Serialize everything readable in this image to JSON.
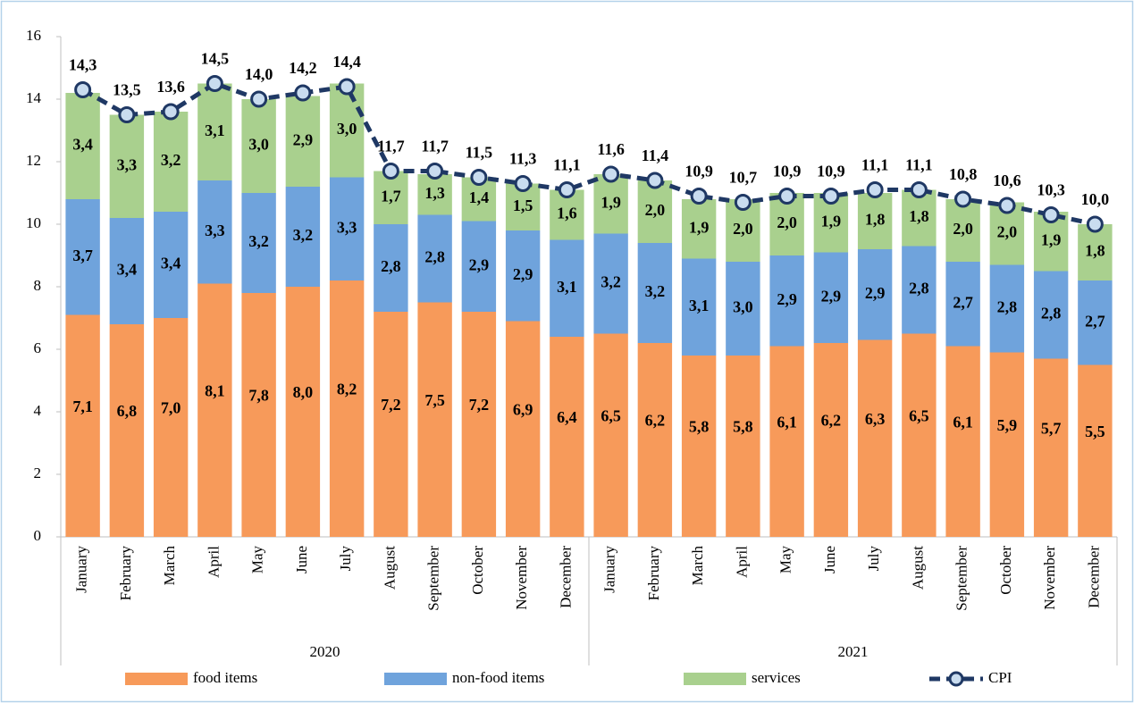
{
  "chart_data": {
    "type": "bar",
    "stacked": true,
    "categories": [
      "January",
      "February",
      "March",
      "April",
      "May",
      "June",
      "July",
      "August",
      "September",
      "October",
      "November",
      "December",
      "January",
      "February",
      "March",
      "April",
      "May",
      "June",
      "July",
      "August",
      "September",
      "October",
      "November",
      "December"
    ],
    "groups": [
      "2020",
      "2021"
    ],
    "ylim": [
      0,
      16
    ],
    "yticks": [
      0,
      2,
      4,
      6,
      8,
      10,
      12,
      14,
      16
    ],
    "grid": false,
    "legend": "bottom",
    "series": [
      {
        "name": "food items",
        "type": "bar",
        "color": "#f79a5a",
        "values": [
          7.1,
          6.8,
          7.0,
          8.1,
          7.8,
          8.0,
          8.2,
          7.2,
          7.5,
          7.2,
          6.9,
          6.4,
          6.5,
          6.2,
          5.8,
          5.8,
          6.1,
          6.2,
          6.3,
          6.5,
          6.1,
          5.9,
          5.7,
          5.5
        ],
        "value_labels": [
          "7,1",
          "6,8",
          "7,0",
          "8,1",
          "7,8",
          "8,0",
          "8,2",
          "7,2",
          "7,5",
          "7,2",
          "6,9",
          "6,4",
          "6,5",
          "6,2",
          "5,8",
          "5,8",
          "6,1",
          "6,2",
          "6,3",
          "6,5",
          "6,1",
          "5,9",
          "5,7",
          "5,5"
        ]
      },
      {
        "name": "non-food items",
        "type": "bar",
        "color": "#6fa3dc",
        "values": [
          3.7,
          3.4,
          3.4,
          3.3,
          3.2,
          3.2,
          3.3,
          2.8,
          2.8,
          2.9,
          2.9,
          3.1,
          3.2,
          3.2,
          3.1,
          3.0,
          2.9,
          2.9,
          2.9,
          2.8,
          2.7,
          2.8,
          2.8,
          2.7
        ],
        "value_labels": [
          "3,7",
          "3,4",
          "3,4",
          "3,3",
          "3,2",
          "3,2",
          "3,3",
          "2,8",
          "2,8",
          "2,9",
          "2,9",
          "3,1",
          "3,2",
          "3,2",
          "3,1",
          "3,0",
          "2,9",
          "2,9",
          "2,9",
          "2,8",
          "2,7",
          "2,8",
          "2,8",
          "2,7"
        ]
      },
      {
        "name": "services",
        "type": "bar",
        "color": "#a9d08e",
        "values": [
          3.4,
          3.3,
          3.2,
          3.1,
          3.0,
          2.9,
          3.0,
          1.7,
          1.3,
          1.4,
          1.5,
          1.6,
          1.9,
          2.0,
          1.9,
          2.0,
          2.0,
          1.9,
          1.8,
          1.8,
          2.0,
          2.0,
          1.9,
          1.8
        ],
        "value_labels": [
          "3,4",
          "3,3",
          "3,2",
          "3,1",
          "3,0",
          "2,9",
          "3,0",
          "1,7",
          "1,3",
          "1,4",
          "1,5",
          "1,6",
          "1,9",
          "2,0",
          "1,9",
          "2,0",
          "2,0",
          "1,9",
          "1,8",
          "1,8",
          "2,0",
          "2,0",
          "1,9",
          "1,8"
        ]
      },
      {
        "name": "CPI",
        "type": "line",
        "color": "#1f3864",
        "values": [
          14.3,
          13.5,
          13.6,
          14.5,
          14.0,
          14.2,
          14.4,
          11.7,
          11.7,
          11.5,
          11.3,
          11.1,
          11.6,
          11.4,
          10.9,
          10.7,
          10.9,
          10.9,
          11.1,
          11.1,
          10.8,
          10.6,
          10.3,
          10.0
        ],
        "value_labels": [
          "14,3",
          "13,5",
          "13,6",
          "14,5",
          "14,0",
          "14,2",
          "14,4",
          "11,7",
          "11,7",
          "11,5",
          "11,3",
          "11,1",
          "11,6",
          "11,4",
          "10,9",
          "10,7",
          "10,9",
          "10,9",
          "11,1",
          "11,1",
          "10,8",
          "10,6",
          "10,3",
          "10,0"
        ]
      }
    ]
  }
}
